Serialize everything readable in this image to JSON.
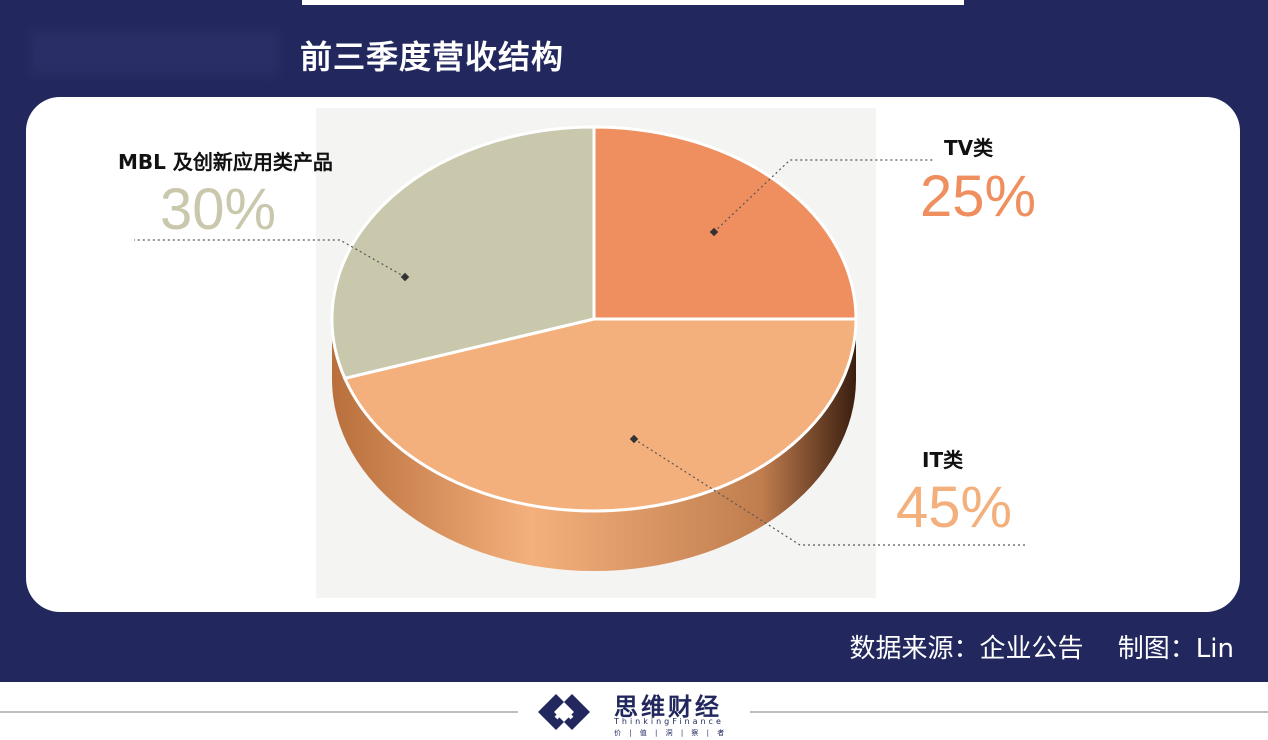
{
  "header": {
    "title": "前三季度营收结构"
  },
  "chart_data": {
    "type": "pie",
    "title": "前三季度营收结构",
    "series": [
      {
        "name": "TV类",
        "value": 25,
        "label": "25%",
        "color": "#ef8f5f"
      },
      {
        "name": "IT类",
        "value": 45,
        "label": "45%",
        "color": "#f4b07c"
      },
      {
        "name": "MBL 及创新应用类产品",
        "value": 30,
        "label": "30%",
        "color": "#c9c8ad"
      }
    ],
    "style": "3d"
  },
  "footer": {
    "source_text": "数据来源：企业公告　 制图：Lin"
  },
  "logo": {
    "name": "思维财经",
    "en": "ThinkingFinance",
    "tagline": "价 | 值 | 洞 | 察 | 者"
  },
  "colors": {
    "banner": "#22285e",
    "card": "#ffffff"
  }
}
